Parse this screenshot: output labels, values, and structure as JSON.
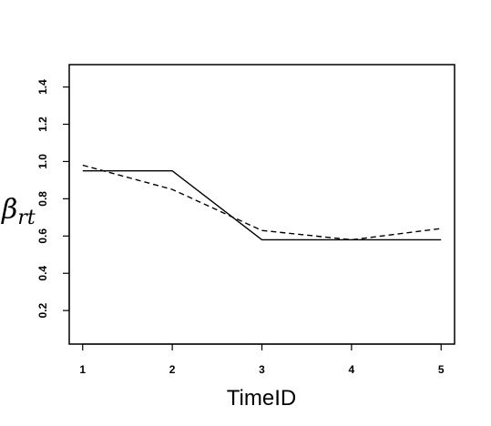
{
  "chart_data": {
    "type": "line",
    "title": "",
    "xlabel": "TimeID",
    "ylabel": {
      "main": "β",
      "subscript": "rt"
    },
    "x": [
      1,
      2,
      3,
      4,
      5
    ],
    "x_tick_labels": [
      "1",
      "2",
      "3",
      "4",
      "5"
    ],
    "y_ticks": [
      0.2,
      0.4,
      0.6,
      0.8,
      1.0,
      1.2,
      1.4
    ],
    "y_tick_labels": [
      "0.2",
      "0.4",
      "0.6",
      "0.8",
      "1.0",
      "1.2",
      "1.4"
    ],
    "xlim": [
      0.85,
      5.15
    ],
    "ylim": [
      0.02,
      1.52
    ],
    "grid": false,
    "legend": "none",
    "series": [
      {
        "style": "solid",
        "color": "#000000",
        "values": [
          0.95,
          0.95,
          0.58,
          0.58,
          0.58
        ]
      },
      {
        "style": "dashed",
        "color": "#000000",
        "values": [
          0.98,
          0.85,
          0.63,
          0.58,
          0.64
        ]
      }
    ]
  }
}
